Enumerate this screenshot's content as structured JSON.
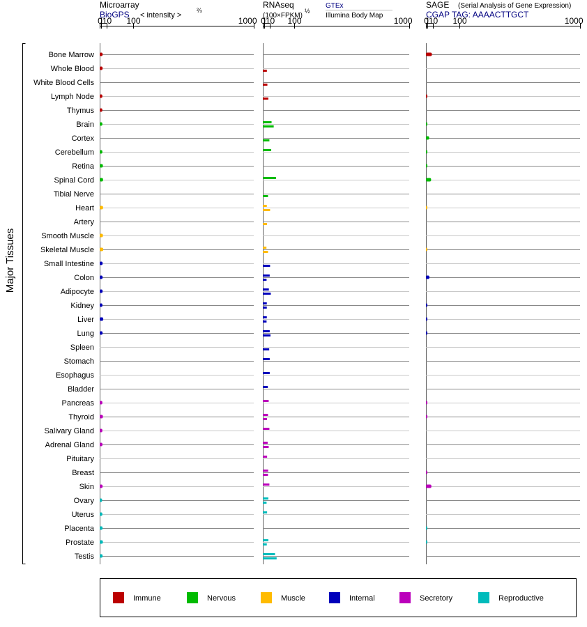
{
  "header": {
    "microarray_title": "Microarray",
    "microarray_source": "BioGPS",
    "microarray_unit": "< intensity >",
    "microarray_unit_exp": "⅔",
    "rnaseq_title": "RNAseq",
    "rnaseq_unit": "(100×FPKM)",
    "rnaseq_unit_exp": "½",
    "rnaseq_source_1": "GTEx",
    "rnaseq_source_2": "Illumina Body Map",
    "sage_title": "SAGE",
    "sage_subtitle": "(Serial Analysis of Gene Expression)",
    "sage_tag": "CGAP TAG: AAAACTTGCT",
    "ylabel": "Major Tissues"
  },
  "colors": {
    "Immune": "#bb0000",
    "Nervous": "#00bb00",
    "Muscle": "#ffbb00",
    "Internal": "#0000bb",
    "Secretory": "#bb00bb",
    "Reproductive": "#00bbbb",
    "source_link": "#000080"
  },
  "chart_data": {
    "type": "bar",
    "orientation": "horizontal",
    "scale": "power",
    "axis_ticks": [
      "0",
      "1",
      "10",
      "100",
      "1000"
    ],
    "xlim": [
      0,
      1000
    ],
    "grid": true,
    "legend_position": "bottom",
    "legend": [
      "Immune",
      "Nervous",
      "Muscle",
      "Internal",
      "Secretory",
      "Reproductive"
    ],
    "tissues": [
      {
        "name": "Bone Marrow",
        "group": "Immune",
        "microarray": 2.6,
        "rnaseq_gtex": null,
        "rnaseq_ibm": null,
        "sage": 7.5
      },
      {
        "name": "Whole Blood",
        "group": "Immune",
        "microarray": 2.6,
        "rnaseq_gtex": null,
        "rnaseq_ibm": 4.6,
        "sage": null
      },
      {
        "name": "White Blood Cells",
        "group": "Immune",
        "microarray": null,
        "rnaseq_gtex": null,
        "rnaseq_ibm": 5.5,
        "sage": null
      },
      {
        "name": "Lymph Node",
        "group": "Immune",
        "microarray": 2.3,
        "rnaseq_gtex": null,
        "rnaseq_ibm": 7.3,
        "sage": 0.01
      },
      {
        "name": "Thymus",
        "group": "Immune",
        "microarray": 2.3,
        "rnaseq_gtex": null,
        "rnaseq_ibm": null,
        "sage": null
      },
      {
        "name": "Brain",
        "group": "Nervous",
        "microarray": 2.3,
        "rnaseq_gtex": 14.6,
        "rnaseq_ibm": 20.3,
        "sage": 0.01
      },
      {
        "name": "Cortex",
        "group": "Nervous",
        "microarray": null,
        "rnaseq_gtex": null,
        "rnaseq_ibm": 9.5,
        "sage": 3.0
      },
      {
        "name": "Cerebellum",
        "group": "Nervous",
        "microarray": 2.3,
        "rnaseq_gtex": 13.7,
        "rnaseq_ibm": null,
        "sage": 0.01
      },
      {
        "name": "Retina",
        "group": "Nervous",
        "microarray": 3.0,
        "rnaseq_gtex": null,
        "rnaseq_ibm": null,
        "sage": 0.01
      },
      {
        "name": "Spinal Cord",
        "group": "Nervous",
        "microarray": 3.2,
        "rnaseq_gtex": 27.0,
        "rnaseq_ibm": null,
        "sage": 6.1
      },
      {
        "name": "Tibial Nerve",
        "group": "Nervous",
        "microarray": null,
        "rnaseq_gtex": null,
        "rnaseq_ibm": 6.6,
        "sage": null
      },
      {
        "name": "Heart",
        "group": "Muscle",
        "microarray": 3.2,
        "rnaseq_gtex": 4.5,
        "rnaseq_ibm": 11.0,
        "sage": 0.01
      },
      {
        "name": "Artery",
        "group": "Muscle",
        "microarray": null,
        "rnaseq_gtex": null,
        "rnaseq_ibm": 4.8,
        "sage": null
      },
      {
        "name": "Smooth Muscle",
        "group": "Muscle",
        "microarray": 3.0,
        "rnaseq_gtex": null,
        "rnaseq_ibm": null,
        "sage": null
      },
      {
        "name": "Skeletal Muscle",
        "group": "Muscle",
        "microarray": 3.5,
        "rnaseq_gtex": 3.9,
        "rnaseq_ibm": 6.6,
        "sage": 0.01
      },
      {
        "name": "Small Intestine",
        "group": "Internal",
        "microarray": 2.6,
        "rnaseq_gtex": null,
        "rnaseq_ibm": 11.0,
        "sage": null
      },
      {
        "name": "Colon",
        "group": "Internal",
        "microarray": 2.6,
        "rnaseq_gtex": 10.2,
        "rnaseq_ibm": 4.1,
        "sage": 3.3
      },
      {
        "name": "Adipocyte",
        "group": "Internal",
        "microarray": 2.6,
        "rnaseq_gtex": 8.4,
        "rnaseq_ibm": 12.7,
        "sage": null
      },
      {
        "name": "Kidney",
        "group": "Internal",
        "microarray": 2.4,
        "rnaseq_gtex": 4.5,
        "rnaseq_ibm": 4.5,
        "sage": 0.01
      },
      {
        "name": "Liver",
        "group": "Internal",
        "microarray": 3.5,
        "rnaseq_gtex": 4.5,
        "rnaseq_ibm": 4.1,
        "sage": 0.01
      },
      {
        "name": "Lung",
        "group": "Internal",
        "microarray": 2.6,
        "rnaseq_gtex": 10.2,
        "rnaseq_ibm": 12.0,
        "sage": 0.01
      },
      {
        "name": "Spleen",
        "group": "Internal",
        "microarray": null,
        "rnaseq_gtex": null,
        "rnaseq_ibm": 9.1,
        "sage": null
      },
      {
        "name": "Stomach",
        "group": "Internal",
        "microarray": null,
        "rnaseq_gtex": 10.2,
        "rnaseq_ibm": null,
        "sage": null
      },
      {
        "name": "Esophagus",
        "group": "Internal",
        "microarray": null,
        "rnaseq_gtex": 10.2,
        "rnaseq_ibm": null,
        "sage": null
      },
      {
        "name": "Bladder",
        "group": "Internal",
        "microarray": null,
        "rnaseq_gtex": 6.3,
        "rnaseq_ibm": null,
        "sage": null
      },
      {
        "name": "Pancreas",
        "group": "Secretory",
        "microarray": 2.3,
        "rnaseq_gtex": 8.0,
        "rnaseq_ibm": null,
        "sage": 0.01
      },
      {
        "name": "Thyroid",
        "group": "Secretory",
        "microarray": 3.0,
        "rnaseq_gtex": 6.6,
        "rnaseq_ibm": 4.8,
        "sage": 0.01
      },
      {
        "name": "Salivary Gland",
        "group": "Secretory",
        "microarray": 2.3,
        "rnaseq_gtex": 9.5,
        "rnaseq_ibm": null,
        "sage": null
      },
      {
        "name": "Adrenal Gland",
        "group": "Secretory",
        "microarray": 2.4,
        "rnaseq_gtex": 6.0,
        "rnaseq_ibm": 8.0,
        "sage": null
      },
      {
        "name": "Pituitary",
        "group": "Secretory",
        "microarray": null,
        "rnaseq_gtex": 5.0,
        "rnaseq_ibm": null,
        "sage": null
      },
      {
        "name": "Breast",
        "group": "Secretory",
        "microarray": null,
        "rnaseq_gtex": 7.0,
        "rnaseq_ibm": 6.6,
        "sage": 0.01
      },
      {
        "name": "Skin",
        "group": "Secretory",
        "microarray": 2.6,
        "rnaseq_gtex": 9.5,
        "rnaseq_ibm": null,
        "sage": 6.6
      },
      {
        "name": "Ovary",
        "group": "Reproductive",
        "microarray": 2.0,
        "rnaseq_gtex": 7.3,
        "rnaseq_ibm": 4.1,
        "sage": null
      },
      {
        "name": "Uterus",
        "group": "Reproductive",
        "microarray": 2.3,
        "rnaseq_gtex": 5.0,
        "rnaseq_ibm": null,
        "sage": null
      },
      {
        "name": "Placenta",
        "group": "Reproductive",
        "microarray": 2.6,
        "rnaseq_gtex": null,
        "rnaseq_ibm": null,
        "sage": 0.01
      },
      {
        "name": "Prostate",
        "group": "Reproductive",
        "microarray": 3.0,
        "rnaseq_gtex": 7.3,
        "rnaseq_ibm": 4.5,
        "sage": 0.01
      },
      {
        "name": "Testis",
        "group": "Reproductive",
        "microarray": 2.6,
        "rnaseq_gtex": 24.0,
        "rnaseq_ibm": 29.0,
        "sage": null
      }
    ]
  }
}
